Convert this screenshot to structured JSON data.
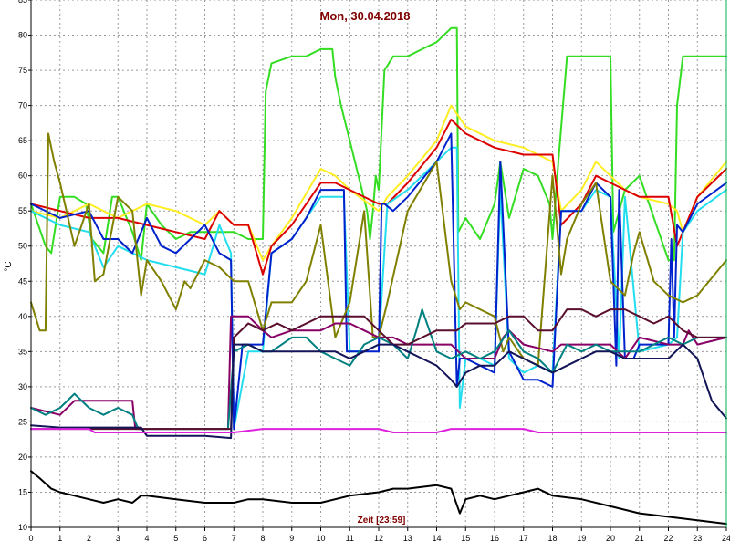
{
  "chart_data": {
    "type": "line",
    "title": "Mon, 30.04.2018",
    "xlabel": "Zeit [23:59]",
    "ylabel": "°C",
    "xlim": [
      0,
      24
    ],
    "ylim": [
      10,
      85
    ],
    "x_ticks": [
      0,
      1,
      2,
      3,
      4,
      5,
      6,
      7,
      8,
      9,
      10,
      11,
      12,
      13,
      14,
      15,
      16,
      17,
      18,
      19,
      20,
      21,
      22,
      23,
      24
    ],
    "y_ticks": [
      10,
      15,
      20,
      25,
      30,
      35,
      40,
      45,
      50,
      55,
      60,
      65,
      70,
      75,
      80,
      85
    ],
    "grid": true,
    "colors": {
      "grid": "#9a9a9a",
      "axis": "#000000",
      "title": "#800000",
      "xlabel": "#800000",
      "right_marker": "#00b050"
    },
    "series": [
      {
        "color": "#33dd22",
        "width": 2,
        "x": [
          0,
          0.5,
          0.7,
          1,
          1.5,
          1.9,
          2.1,
          2.5,
          2.8,
          3,
          3.5,
          3.8,
          4,
          4.5,
          5,
          5.5,
          6,
          6.5,
          7,
          7.5,
          7.9,
          8,
          8.1,
          8.3,
          9,
          9.5,
          10,
          10.4,
          10.5,
          10.7,
          11,
          11.3,
          11.6,
          11.7,
          11.8,
          11.9,
          12,
          12.2,
          12.5,
          13,
          13.5,
          14,
          14.5,
          14.7,
          14.75,
          15,
          15.5,
          16,
          16.1,
          16.2,
          16.5,
          17,
          17.5,
          17.9,
          18,
          18.2,
          18.5,
          19,
          19.5,
          20,
          20.1,
          20.5,
          21,
          21.5,
          22,
          22.2,
          22.3,
          22.5,
          23,
          23.5,
          24
        ],
        "y": [
          56,
          50,
          49,
          57,
          57,
          56,
          51,
          49,
          57,
          57,
          52,
          48,
          56,
          53,
          51,
          52,
          52,
          52,
          52,
          51,
          51,
          51,
          72,
          76,
          77,
          77,
          78,
          78,
          74,
          70,
          65,
          60,
          55,
          51,
          55,
          60,
          58,
          75,
          77,
          77,
          78,
          79,
          81,
          81,
          52,
          54,
          51,
          56,
          59,
          62,
          54,
          61,
          60,
          56,
          51,
          62,
          77,
          77,
          77,
          77,
          52,
          58,
          60,
          54,
          48,
          48,
          70,
          77,
          77,
          77,
          77
        ]
      },
      {
        "color": "#ffee22",
        "width": 2,
        "x": [
          0,
          1,
          2,
          3,
          4,
          5,
          6,
          6.5,
          7,
          7.5,
          8,
          8.3,
          9,
          10,
          10.5,
          11,
          12,
          12.3,
          13,
          14,
          14.5,
          15,
          16,
          17,
          18,
          18.3,
          19,
          19.5,
          20,
          20.5,
          21,
          22,
          22.3,
          22.5,
          23,
          24
        ],
        "y": [
          55,
          54,
          56,
          54,
          56,
          55,
          53,
          55,
          53,
          53,
          48,
          50,
          54,
          61,
          60,
          58,
          55,
          57,
          60,
          65,
          70,
          67,
          65,
          64,
          62,
          55,
          58,
          62,
          60,
          58,
          57,
          56,
          55,
          52,
          57,
          62
        ]
      },
      {
        "color": "#dd0000",
        "width": 2,
        "x": [
          0,
          1,
          2,
          3,
          4,
          5,
          6,
          6.5,
          7,
          7.5,
          8,
          8.3,
          9,
          10,
          10.5,
          11,
          12,
          12.3,
          13,
          14,
          14.5,
          15,
          16,
          17,
          18,
          18.3,
          19,
          19.5,
          20,
          20.5,
          21,
          22,
          22.3,
          22.5,
          23,
          24
        ],
        "y": [
          56,
          55,
          54,
          54,
          53,
          52,
          51,
          55,
          53,
          53,
          46,
          50,
          53,
          59,
          59,
          58,
          56,
          56,
          59,
          64,
          68,
          66,
          64,
          63,
          63,
          53,
          56,
          60,
          59,
          58,
          57,
          57,
          50,
          52,
          57,
          61
        ]
      },
      {
        "color": "#22ddee",
        "width": 2,
        "x": [
          0,
          1,
          2,
          2.5,
          3,
          4,
          5,
          6,
          6.5,
          6.9,
          7,
          7.5,
          8,
          8.3,
          9,
          10,
          10.5,
          10.8,
          11,
          11.5,
          12,
          12.3,
          13,
          14,
          14.5,
          14.7,
          14.8,
          15,
          15.5,
          16,
          16.2,
          16.5,
          17,
          17.5,
          18,
          18.3,
          19,
          19.5,
          20,
          20.3,
          20.5,
          21,
          22,
          22.3,
          22.5,
          23,
          24
        ],
        "y": [
          55,
          53,
          52,
          47,
          50,
          48,
          47,
          46,
          53,
          49,
          24,
          35,
          35,
          49,
          51,
          57,
          57,
          57,
          35,
          35,
          36,
          56,
          58,
          62,
          64,
          64,
          27,
          34,
          34,
          33,
          58,
          34,
          32,
          33,
          32,
          55,
          55,
          58,
          57,
          34,
          57,
          35,
          36,
          37,
          52,
          55,
          58
        ]
      },
      {
        "color": "#0022cc",
        "width": 2,
        "x": [
          0,
          1,
          2,
          2.5,
          3,
          3.5,
          4,
          4.5,
          5,
          6,
          6.5,
          6.9,
          7,
          7.3,
          8,
          8.3,
          9,
          9.5,
          10,
          10.5,
          10.8,
          10.9,
          11.5,
          12,
          12.1,
          12.2,
          12.5,
          13,
          14,
          14.5,
          14.7,
          14.8,
          15,
          15.5,
          16,
          16.2,
          16.5,
          17,
          17.5,
          18,
          18.3,
          19,
          19.5,
          20,
          20.2,
          20.3,
          20.5,
          20.8,
          21,
          22,
          22.1,
          22.2,
          22.3,
          22.5,
          23,
          24
        ],
        "y": [
          56,
          54,
          55,
          51,
          51,
          49,
          54,
          50,
          49,
          53,
          49,
          48,
          24,
          36,
          36,
          49,
          51,
          54,
          58,
          58,
          58,
          35,
          35,
          35,
          56,
          56,
          55,
          57,
          62,
          66,
          30,
          34,
          34,
          33,
          32,
          62,
          35,
          31,
          31,
          30,
          55,
          55,
          59,
          57,
          33,
          58,
          34,
          34,
          36,
          36,
          51,
          37,
          53,
          52,
          56,
          59
        ]
      },
      {
        "color": "#808000",
        "width": 2,
        "x": [
          0,
          0.3,
          0.5,
          0.6,
          0.8,
          1,
          1.5,
          2,
          2.2,
          2.5,
          3,
          3.5,
          3.8,
          4,
          4.5,
          5,
          5.3,
          5.5,
          6,
          6.5,
          7,
          7.5,
          8,
          8.3,
          9,
          9.5,
          10,
          10.5,
          11,
          11.5,
          11.8,
          12,
          12.3,
          13,
          14,
          14.5,
          14.8,
          15,
          15.5,
          16,
          16.3,
          16.5,
          17,
          17.5,
          18,
          18.3,
          18.5,
          19,
          19.5,
          20,
          20.5,
          20.8,
          21,
          21.5,
          22,
          22.5,
          23,
          24
        ],
        "y": [
          42,
          38,
          38,
          66,
          62,
          59,
          50,
          56,
          45,
          46,
          57,
          55,
          43,
          48,
          45,
          41,
          45,
          44,
          48,
          47,
          45,
          45,
          38,
          42,
          42,
          45,
          53,
          37,
          42,
          55,
          37,
          37,
          42,
          55,
          62,
          45,
          41,
          42,
          41,
          40,
          35,
          37,
          34,
          33,
          60,
          46,
          51,
          56,
          59,
          45,
          43,
          49,
          52,
          45,
          43,
          42,
          43,
          48
        ]
      },
      {
        "color": "#880066",
        "width": 2,
        "x": [
          0,
          1,
          1.5,
          2,
          3,
          3.5,
          3.6,
          4,
          5,
          6,
          6.5,
          6.8,
          6.9,
          7,
          7.5,
          8,
          8.3,
          9,
          10,
          10.5,
          11,
          11.5,
          12,
          12.5,
          13,
          14,
          14.5,
          15,
          16,
          16.3,
          16.5,
          17,
          18,
          18.3,
          19,
          20,
          20.5,
          21,
          22,
          22.5,
          22.7,
          23,
          24
        ],
        "y": [
          27,
          26,
          28,
          28,
          28,
          28,
          24,
          24,
          24,
          24,
          24,
          24,
          40,
          40,
          40,
          38,
          37,
          38,
          38,
          39,
          39,
          38,
          37,
          37,
          36,
          36,
          36,
          34,
          34,
          37,
          38,
          36,
          35,
          36,
          36,
          36,
          34,
          37,
          36,
          36,
          38,
          36,
          37
        ]
      },
      {
        "color": "#008080",
        "width": 2,
        "x": [
          0,
          0.5,
          1,
          1.5,
          2,
          2.5,
          3,
          3.5,
          3.7,
          4,
          5,
          6,
          6.5,
          6.8,
          7,
          7.5,
          8,
          8.3,
          9,
          9.5,
          10,
          10.5,
          11,
          11.5,
          12,
          12.5,
          13,
          13.3,
          13.5,
          14,
          14.5,
          15,
          15.5,
          16,
          16.5,
          17,
          17.5,
          18,
          18.5,
          19,
          19.5,
          20,
          20.5,
          21,
          22,
          22.5,
          23,
          24
        ],
        "y": [
          27,
          26,
          27,
          29,
          27,
          26,
          27,
          26,
          24,
          24,
          24,
          24,
          24,
          24,
          35,
          36,
          35,
          35,
          37,
          37,
          35,
          34,
          33,
          36,
          37,
          36,
          34,
          38,
          41,
          35,
          34,
          35,
          34,
          35,
          38,
          35,
          34,
          32,
          36,
          35,
          36,
          35,
          35,
          35,
          37,
          36,
          37,
          37
        ]
      },
      {
        "color": "#5a0f2e",
        "width": 2,
        "x": [
          0,
          1,
          2,
          3,
          4,
          5,
          6,
          6.5,
          6.9,
          7,
          7.5,
          8,
          8.5,
          9,
          9.5,
          10,
          10.5,
          10.8,
          11,
          11.5,
          12,
          12.5,
          13,
          13.5,
          14,
          14.5,
          14.7,
          15,
          15.5,
          16,
          16.5,
          17,
          17.5,
          18,
          18.5,
          19,
          19.5,
          20,
          20.5,
          21,
          21.5,
          22,
          22.5,
          23,
          24
        ],
        "y": [
          24,
          24,
          24,
          24,
          24,
          24,
          24,
          24,
          24,
          37,
          39,
          38,
          39,
          38,
          39,
          40,
          40,
          40,
          40,
          40,
          38,
          36,
          36,
          37,
          38,
          38,
          38,
          39,
          39,
          39,
          40,
          40,
          38,
          38,
          41,
          41,
          40,
          41,
          41,
          40,
          39,
          40,
          38,
          37,
          37
        ]
      },
      {
        "color": "#141459",
        "width": 2,
        "x": [
          0,
          1,
          2,
          3,
          3.8,
          4,
          5,
          6,
          6.9,
          7,
          7.5,
          8,
          8.5,
          9,
          10,
          10.5,
          11,
          11.5,
          12,
          12.5,
          13,
          13.5,
          14,
          14.5,
          14.7,
          15,
          15.5,
          16,
          16.5,
          17,
          17.5,
          18,
          18.5,
          19,
          19.5,
          20,
          20.5,
          21,
          21.5,
          22,
          22.5,
          23,
          23.5,
          24
        ],
        "y": [
          24.5,
          24.2,
          24.2,
          24.2,
          24.2,
          23,
          23,
          23,
          22.7,
          36,
          36,
          35,
          35,
          35,
          35,
          35,
          34,
          35,
          36,
          36,
          35,
          34,
          33,
          31,
          30,
          32,
          33,
          33,
          35,
          34,
          33,
          32,
          33,
          34,
          35,
          35,
          34,
          34,
          34,
          34,
          36,
          34,
          28,
          25.5
        ]
      },
      {
        "color": "#dd22dd",
        "width": 2,
        "x": [
          0,
          1,
          2,
          2.2,
          3,
          4,
          5,
          6,
          7,
          8,
          9,
          10,
          11,
          12,
          12.5,
          13,
          14,
          14.5,
          15,
          16,
          17,
          17.5,
          18,
          19,
          20,
          21,
          22,
          23,
          24
        ],
        "y": [
          24,
          24,
          24,
          23.5,
          23.5,
          23.5,
          23.5,
          23.5,
          23.5,
          24,
          24,
          24,
          24,
          24,
          23.5,
          23.5,
          23.5,
          24,
          24,
          24,
          24,
          23.5,
          23.5,
          23.5,
          23.5,
          23.5,
          23.5,
          23.5,
          23.5
        ]
      },
      {
        "color": "#000000",
        "width": 2,
        "x": [
          0,
          0.3,
          0.7,
          1,
          1.5,
          2,
          2.5,
          3,
          3.5,
          3.8,
          4,
          5,
          6,
          7,
          7.5,
          8,
          9,
          10,
          11,
          12,
          12.5,
          13,
          14,
          14.5,
          14.8,
          15,
          15.5,
          16,
          16.5,
          17,
          17.5,
          18,
          19,
          20,
          21,
          22,
          23,
          24
        ],
        "y": [
          18,
          17,
          15.5,
          15,
          14.5,
          14,
          13.5,
          14,
          13.5,
          14.5,
          14.5,
          14,
          13.5,
          13.5,
          14,
          14,
          13.5,
          13.5,
          14.5,
          15,
          15.5,
          15.5,
          16,
          15.5,
          12,
          14,
          14.5,
          14,
          14.5,
          15,
          15.5,
          14.5,
          14,
          13,
          12,
          11.5,
          11,
          10.5
        ]
      }
    ]
  }
}
